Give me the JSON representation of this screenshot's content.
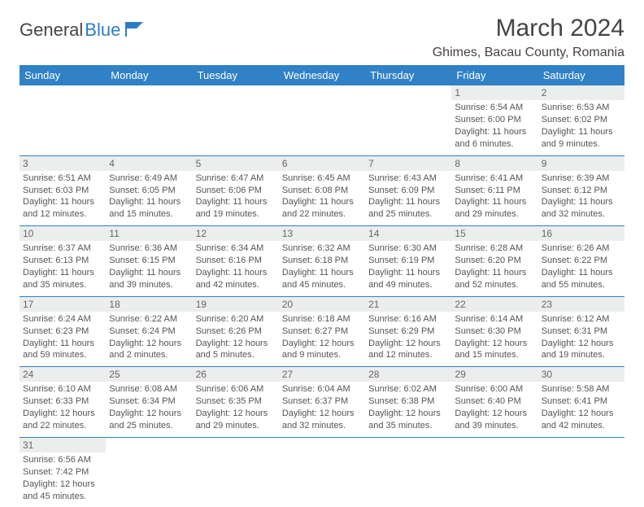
{
  "logo": {
    "text1": "General",
    "text2": "Blue"
  },
  "title": "March 2024",
  "location": "Ghimes, Bacau County, Romania",
  "colors": {
    "header_bg": "#3081c6",
    "header_fg": "#ffffff",
    "daynum_bg": "#eceded",
    "border": "#3081c6",
    "text": "#555555",
    "title": "#444444"
  },
  "day_headers": [
    "Sunday",
    "Monday",
    "Tuesday",
    "Wednesday",
    "Thursday",
    "Friday",
    "Saturday"
  ],
  "weeks": [
    [
      {
        "empty": true
      },
      {
        "empty": true
      },
      {
        "empty": true
      },
      {
        "empty": true
      },
      {
        "empty": true
      },
      {
        "day": "1",
        "sunrise": "6:54 AM",
        "sunset": "6:00 PM",
        "daylight": "11 hours and 6 minutes."
      },
      {
        "day": "2",
        "sunrise": "6:53 AM",
        "sunset": "6:02 PM",
        "daylight": "11 hours and 9 minutes."
      }
    ],
    [
      {
        "day": "3",
        "sunrise": "6:51 AM",
        "sunset": "6:03 PM",
        "daylight": "11 hours and 12 minutes."
      },
      {
        "day": "4",
        "sunrise": "6:49 AM",
        "sunset": "6:05 PM",
        "daylight": "11 hours and 15 minutes."
      },
      {
        "day": "5",
        "sunrise": "6:47 AM",
        "sunset": "6:06 PM",
        "daylight": "11 hours and 19 minutes."
      },
      {
        "day": "6",
        "sunrise": "6:45 AM",
        "sunset": "6:08 PM",
        "daylight": "11 hours and 22 minutes."
      },
      {
        "day": "7",
        "sunrise": "6:43 AM",
        "sunset": "6:09 PM",
        "daylight": "11 hours and 25 minutes."
      },
      {
        "day": "8",
        "sunrise": "6:41 AM",
        "sunset": "6:11 PM",
        "daylight": "11 hours and 29 minutes."
      },
      {
        "day": "9",
        "sunrise": "6:39 AM",
        "sunset": "6:12 PM",
        "daylight": "11 hours and 32 minutes."
      }
    ],
    [
      {
        "day": "10",
        "sunrise": "6:37 AM",
        "sunset": "6:13 PM",
        "daylight": "11 hours and 35 minutes."
      },
      {
        "day": "11",
        "sunrise": "6:36 AM",
        "sunset": "6:15 PM",
        "daylight": "11 hours and 39 minutes."
      },
      {
        "day": "12",
        "sunrise": "6:34 AM",
        "sunset": "6:16 PM",
        "daylight": "11 hours and 42 minutes."
      },
      {
        "day": "13",
        "sunrise": "6:32 AM",
        "sunset": "6:18 PM",
        "daylight": "11 hours and 45 minutes."
      },
      {
        "day": "14",
        "sunrise": "6:30 AM",
        "sunset": "6:19 PM",
        "daylight": "11 hours and 49 minutes."
      },
      {
        "day": "15",
        "sunrise": "6:28 AM",
        "sunset": "6:20 PM",
        "daylight": "11 hours and 52 minutes."
      },
      {
        "day": "16",
        "sunrise": "6:26 AM",
        "sunset": "6:22 PM",
        "daylight": "11 hours and 55 minutes."
      }
    ],
    [
      {
        "day": "17",
        "sunrise": "6:24 AM",
        "sunset": "6:23 PM",
        "daylight": "11 hours and 59 minutes."
      },
      {
        "day": "18",
        "sunrise": "6:22 AM",
        "sunset": "6:24 PM",
        "daylight": "12 hours and 2 minutes."
      },
      {
        "day": "19",
        "sunrise": "6:20 AM",
        "sunset": "6:26 PM",
        "daylight": "12 hours and 5 minutes."
      },
      {
        "day": "20",
        "sunrise": "6:18 AM",
        "sunset": "6:27 PM",
        "daylight": "12 hours and 9 minutes."
      },
      {
        "day": "21",
        "sunrise": "6:16 AM",
        "sunset": "6:29 PM",
        "daylight": "12 hours and 12 minutes."
      },
      {
        "day": "22",
        "sunrise": "6:14 AM",
        "sunset": "6:30 PM",
        "daylight": "12 hours and 15 minutes."
      },
      {
        "day": "23",
        "sunrise": "6:12 AM",
        "sunset": "6:31 PM",
        "daylight": "12 hours and 19 minutes."
      }
    ],
    [
      {
        "day": "24",
        "sunrise": "6:10 AM",
        "sunset": "6:33 PM",
        "daylight": "12 hours and 22 minutes."
      },
      {
        "day": "25",
        "sunrise": "6:08 AM",
        "sunset": "6:34 PM",
        "daylight": "12 hours and 25 minutes."
      },
      {
        "day": "26",
        "sunrise": "6:06 AM",
        "sunset": "6:35 PM",
        "daylight": "12 hours and 29 minutes."
      },
      {
        "day": "27",
        "sunrise": "6:04 AM",
        "sunset": "6:37 PM",
        "daylight": "12 hours and 32 minutes."
      },
      {
        "day": "28",
        "sunrise": "6:02 AM",
        "sunset": "6:38 PM",
        "daylight": "12 hours and 35 minutes."
      },
      {
        "day": "29",
        "sunrise": "6:00 AM",
        "sunset": "6:40 PM",
        "daylight": "12 hours and 39 minutes."
      },
      {
        "day": "30",
        "sunrise": "5:58 AM",
        "sunset": "6:41 PM",
        "daylight": "12 hours and 42 minutes."
      }
    ],
    [
      {
        "day": "31",
        "sunrise": "6:56 AM",
        "sunset": "7:42 PM",
        "daylight": "12 hours and 45 minutes."
      },
      {
        "empty": true
      },
      {
        "empty": true
      },
      {
        "empty": true
      },
      {
        "empty": true
      },
      {
        "empty": true
      },
      {
        "empty": true
      }
    ]
  ],
  "labels": {
    "sunrise": "Sunrise: ",
    "sunset": "Sunset: ",
    "daylight": "Daylight: "
  }
}
